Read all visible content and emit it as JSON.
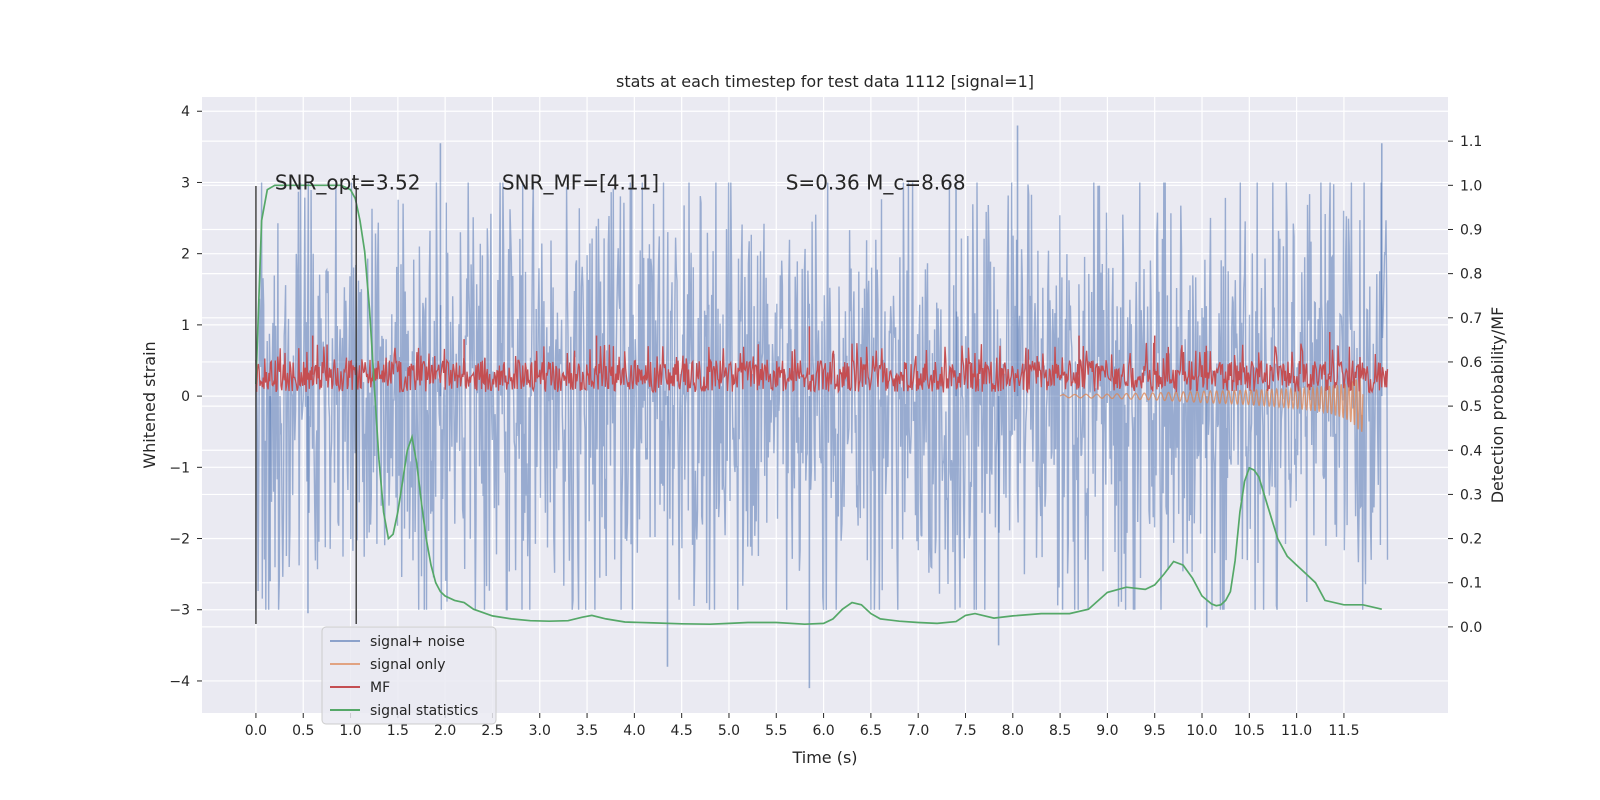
{
  "chart_data": {
    "type": "line",
    "title": "stats at each timestep for test data 1112 [signal=1]",
    "xlabel": "Time (s)",
    "ylabel": "Whitened strain",
    "y2label": "Detection probability/MF",
    "xlim": [
      -0.57,
      12.6
    ],
    "ylim": [
      -4.45,
      4.2
    ],
    "y2lim": [
      -0.195,
      1.2
    ],
    "grid": true,
    "legend_position": "lower-left",
    "x_ticks": [
      0.0,
      0.5,
      1.0,
      1.5,
      2.0,
      2.5,
      3.0,
      3.5,
      4.0,
      4.5,
      5.0,
      5.5,
      6.0,
      6.5,
      7.0,
      7.5,
      8.0,
      8.5,
      9.0,
      9.5,
      10.0,
      10.5,
      11.0,
      11.5
    ],
    "x_tick_labels": [
      "0.0",
      "0.5",
      "1.0",
      "1.5",
      "2.0",
      "2.5",
      "3.0",
      "3.5",
      "4.0",
      "4.5",
      "5.0",
      "5.5",
      "6.0",
      "6.5",
      "7.0",
      "7.5",
      "8.0",
      "8.5",
      "9.0",
      "9.5",
      "10.0",
      "10.5",
      "11.0",
      "11.5"
    ],
    "y_ticks": [
      -4,
      -3,
      -2,
      -1,
      0,
      1,
      2,
      3,
      4
    ],
    "y_tick_labels": [
      "−4",
      "−3",
      "−2",
      "−1",
      "0",
      "1",
      "2",
      "3",
      "4"
    ],
    "y2_ticks": [
      0.0,
      0.1,
      0.2,
      0.3,
      0.4,
      0.5,
      0.6,
      0.7,
      0.8,
      0.9,
      1.0,
      1.1
    ],
    "y2_tick_labels": [
      "0.0",
      "0.1",
      "0.2",
      "0.3",
      "0.4",
      "0.5",
      "0.6",
      "0.7",
      "0.8",
      "0.9",
      "1.0",
      "1.1"
    ],
    "annotations": [
      {
        "text": "SNR_opt=3.52",
        "x": 0.2,
        "y": 3.0
      },
      {
        "text": "SNR_MF=[4.11]",
        "x": 2.6,
        "y": 3.0
      },
      {
        "text": "S=0.36   M_c=8.68",
        "x": 5.6,
        "y": 3.0
      }
    ],
    "vlines": [
      0.0,
      1.06
    ],
    "vline_range": [
      -3.2,
      2.95
    ],
    "series": [
      {
        "name": "signal+ noise",
        "color": "#4c72b0",
        "axis": "left",
        "style": "noise",
        "x_range": [
          0.0,
          11.96
        ],
        "band_lower": -2.0,
        "band_upper": 2.0,
        "spikes": [
          [
            1.95,
            3.55
          ],
          [
            8.05,
            3.8
          ],
          [
            11.9,
            3.55
          ],
          [
            7.4,
            3.0
          ],
          [
            4.35,
            -3.8
          ],
          [
            5.85,
            -4.1
          ],
          [
            7.85,
            -3.5
          ],
          [
            10.05,
            -3.25
          ],
          [
            0.55,
            -3.05
          ],
          [
            0.15,
            -2.6
          ]
        ]
      },
      {
        "name": "signal only",
        "color": "#dd8452",
        "axis": "left",
        "style": "chirp",
        "x": [
          8.5,
          9.0,
          9.5,
          10.0,
          10.5,
          11.0,
          11.3,
          11.5,
          11.6,
          11.65,
          11.7
        ],
        "amplitude": [
          0.02,
          0.03,
          0.05,
          0.08,
          0.1,
          0.14,
          0.18,
          0.24,
          0.3,
          0.36,
          0.4
        ]
      },
      {
        "name": "MF",
        "color": "#c44e52",
        "axis": "left",
        "style": "band",
        "x_range": [
          0.0,
          11.96
        ],
        "band_lower": 0.05,
        "band_upper": 0.5,
        "peaks": [
          [
            0.6,
            0.85
          ],
          [
            2.2,
            0.8
          ],
          [
            3.6,
            0.85
          ],
          [
            5.85,
            0.98
          ],
          [
            8.7,
            0.85
          ],
          [
            9.5,
            0.85
          ],
          [
            11.35,
            0.9
          ]
        ]
      },
      {
        "name": "signal statistics",
        "color": "#55a868",
        "axis": "right",
        "style": "line",
        "x": [
          0.0,
          0.06,
          0.12,
          0.2,
          0.3,
          0.5,
          0.7,
          0.9,
          1.0,
          1.05,
          1.1,
          1.15,
          1.2,
          1.25,
          1.3,
          1.35,
          1.4,
          1.45,
          1.5,
          1.55,
          1.6,
          1.65,
          1.7,
          1.75,
          1.8,
          1.85,
          1.9,
          1.95,
          2.0,
          2.1,
          2.2,
          2.3,
          2.5,
          2.7,
          2.9,
          3.1,
          3.3,
          3.45,
          3.55,
          3.7,
          3.9,
          4.2,
          4.5,
          4.8,
          5.0,
          5.2,
          5.5,
          5.8,
          6.0,
          6.1,
          6.2,
          6.3,
          6.4,
          6.5,
          6.6,
          6.8,
          7.0,
          7.2,
          7.4,
          7.5,
          7.6,
          7.8,
          8.0,
          8.3,
          8.6,
          8.8,
          9.0,
          9.2,
          9.4,
          9.5,
          9.6,
          9.7,
          9.8,
          9.9,
          10.0,
          10.1,
          10.15,
          10.2,
          10.25,
          10.3,
          10.35,
          10.4,
          10.45,
          10.5,
          10.55,
          10.6,
          10.7,
          10.8,
          10.9,
          11.0,
          11.1,
          11.2,
          11.3,
          11.5,
          11.7,
          11.9
        ],
        "values": [
          0.55,
          0.92,
          0.99,
          1.0,
          1.0,
          1.0,
          1.0,
          1.0,
          0.99,
          0.97,
          0.92,
          0.85,
          0.72,
          0.55,
          0.38,
          0.26,
          0.2,
          0.21,
          0.26,
          0.33,
          0.4,
          0.43,
          0.37,
          0.28,
          0.2,
          0.14,
          0.1,
          0.08,
          0.07,
          0.06,
          0.055,
          0.04,
          0.025,
          0.018,
          0.014,
          0.013,
          0.014,
          0.022,
          0.026,
          0.018,
          0.011,
          0.009,
          0.007,
          0.006,
          0.008,
          0.01,
          0.01,
          0.006,
          0.008,
          0.018,
          0.04,
          0.055,
          0.05,
          0.03,
          0.018,
          0.013,
          0.01,
          0.008,
          0.012,
          0.026,
          0.03,
          0.02,
          0.025,
          0.03,
          0.03,
          0.04,
          0.078,
          0.09,
          0.085,
          0.095,
          0.12,
          0.148,
          0.14,
          0.11,
          0.07,
          0.052,
          0.048,
          0.05,
          0.06,
          0.08,
          0.15,
          0.26,
          0.33,
          0.36,
          0.355,
          0.34,
          0.27,
          0.2,
          0.16,
          0.14,
          0.12,
          0.1,
          0.06,
          0.05,
          0.05,
          0.04
        ]
      }
    ]
  }
}
